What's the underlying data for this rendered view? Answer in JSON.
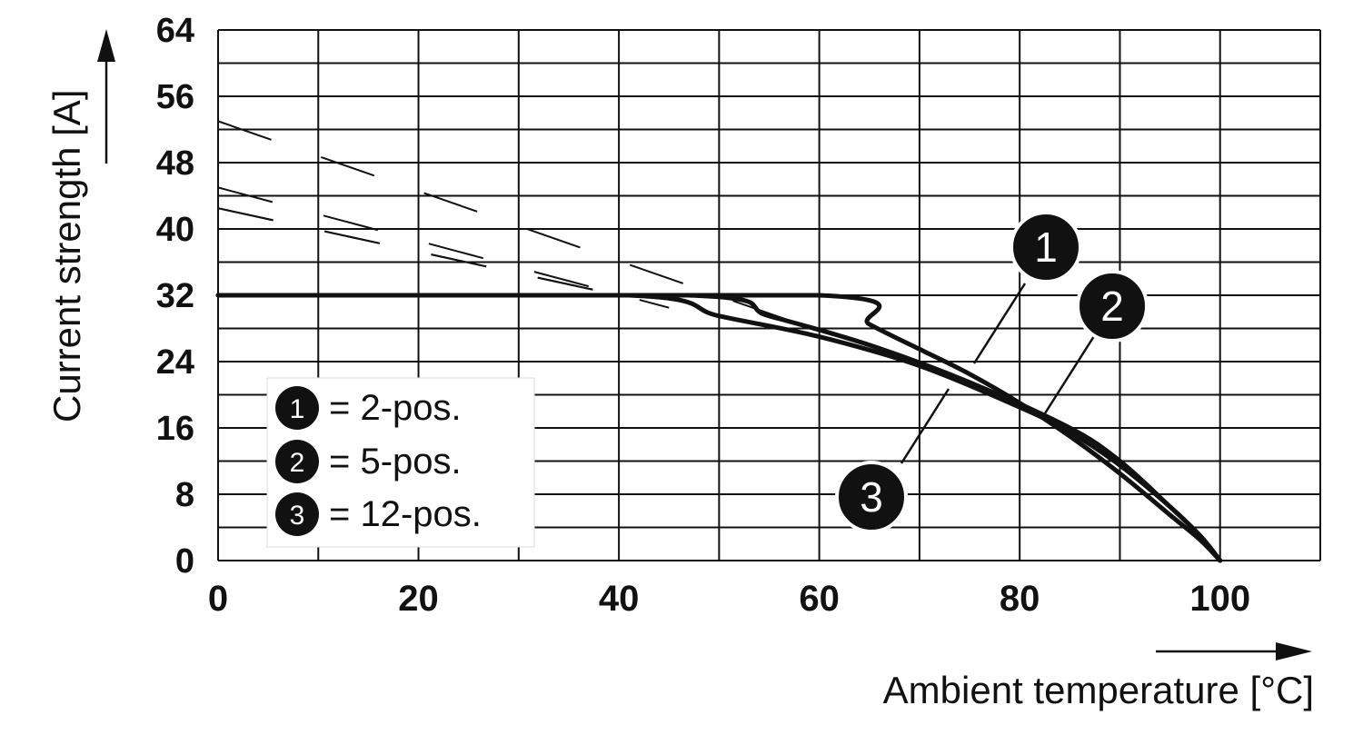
{
  "chart_data": {
    "type": "line",
    "xlabel": "Ambient temperature [°C]",
    "ylabel": "Current strength [A]",
    "xlim": [
      0,
      110
    ],
    "ylim": [
      0,
      64
    ],
    "x_ticks": [
      "0",
      "20",
      "40",
      "60",
      "80",
      "100"
    ],
    "x_tick_values": [
      0,
      20,
      40,
      60,
      80,
      100
    ],
    "y_ticks": [
      "0",
      "8",
      "16",
      "24",
      "32",
      "40",
      "48",
      "56",
      "64"
    ],
    "y_tick_values": [
      0,
      8,
      16,
      24,
      32,
      40,
      48,
      56,
      64
    ],
    "grid": true,
    "x_grid_step": 10,
    "y_grid_step": 4,
    "legend_position": "bottom-left",
    "legend": [
      {
        "marker": "1",
        "label": "= 2-pos."
      },
      {
        "marker": "2",
        "label": "= 5-pos."
      },
      {
        "marker": "3",
        "label": "= 12-pos."
      }
    ],
    "series": [
      {
        "marker": "1",
        "x": [
          0,
          60,
          65,
          70,
          75,
          80,
          85,
          90,
          95,
          98,
          100
        ],
        "y": [
          32,
          32,
          28.5,
          25.5,
          22.5,
          19,
          15,
          10.5,
          5.5,
          2.5,
          0
        ]
      },
      {
        "marker": "2",
        "x": [
          0,
          47,
          55,
          65,
          75,
          85,
          90,
          95,
          98,
          100
        ],
        "y": [
          32,
          32,
          29.5,
          26,
          21.5,
          16,
          12,
          6.5,
          3,
          0
        ]
      },
      {
        "marker": "3",
        "x": [
          0,
          41,
          50,
          60,
          70,
          80,
          85,
          90,
          95,
          98,
          100
        ],
        "y": [
          32,
          32,
          29.5,
          27,
          23.5,
          18.5,
          15.5,
          11.5,
          6.5,
          3,
          0
        ]
      }
    ],
    "dashed_series": [
      {
        "x": [
          0,
          60
        ],
        "y": [
          53,
          27.7
        ]
      },
      {
        "x": [
          0,
          45
        ],
        "y": [
          45,
          30.5
        ]
      },
      {
        "x": [
          0,
          40
        ],
        "y": [
          42.5,
          32
        ]
      },
      {
        "x": [
          0,
          40
        ],
        "y": [
          42.5,
          32
        ]
      }
    ],
    "colors": {
      "line": "#111111",
      "grid": "#111111",
      "badge": "#111111"
    }
  }
}
